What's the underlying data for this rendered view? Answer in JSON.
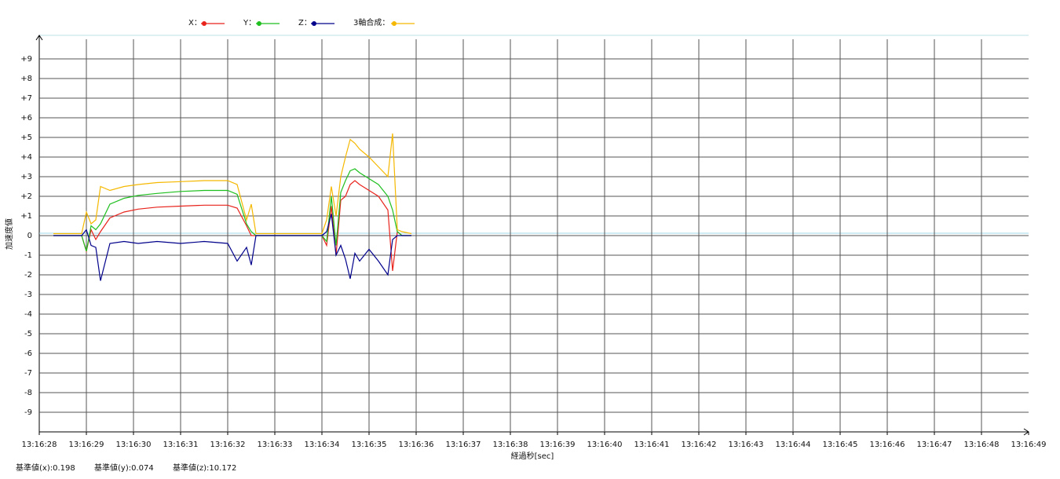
{
  "chart_data": {
    "type": "line",
    "y_label": "加速度値",
    "x_label": "経過秒[sec]",
    "footer": [
      "基準値(x):0.198",
      "基準値(y):0.074",
      "基準値(z):10.172"
    ],
    "grid": true,
    "xlim": [
      47788,
      47809
    ],
    "xticks": [
      {
        "value": 47788,
        "label": "13:16:28"
      },
      {
        "value": 47789,
        "label": "13:16:29"
      },
      {
        "value": 47790,
        "label": "13:16:30"
      },
      {
        "value": 47791,
        "label": "13:16:31"
      },
      {
        "value": 47792,
        "label": "13:16:32"
      },
      {
        "value": 47793,
        "label": "13:16:33"
      },
      {
        "value": 47794,
        "label": "13:16:34"
      },
      {
        "value": 47795,
        "label": "13:16:35"
      },
      {
        "value": 47796,
        "label": "13:16:36"
      },
      {
        "value": 47797,
        "label": "13:16:37"
      },
      {
        "value": 47798,
        "label": "13:16:38"
      },
      {
        "value": 47799,
        "label": "13:16:39"
      },
      {
        "value": 47800,
        "label": "13:16:40"
      },
      {
        "value": 47801,
        "label": "13:16:41"
      },
      {
        "value": 47802,
        "label": "13:16:42"
      },
      {
        "value": 47803,
        "label": "13:16:43"
      },
      {
        "value": 47804,
        "label": "13:16:44"
      },
      {
        "value": 47805,
        "label": "13:16:45"
      },
      {
        "value": 47806,
        "label": "13:16:46"
      },
      {
        "value": 47807,
        "label": "13:16:47"
      },
      {
        "value": 47808,
        "label": "13:16:48"
      },
      {
        "value": 47809,
        "label": "13:16:49"
      }
    ],
    "ylim": [
      -10,
      10
    ],
    "yticks": [
      {
        "value": 9,
        "label": "+9"
      },
      {
        "value": 8,
        "label": "+8"
      },
      {
        "value": 7,
        "label": "+7"
      },
      {
        "value": 6,
        "label": "+6"
      },
      {
        "value": 5,
        "label": "+5"
      },
      {
        "value": 4,
        "label": "+4"
      },
      {
        "value": 3,
        "label": "+3"
      },
      {
        "value": 2,
        "label": "+2"
      },
      {
        "value": 1,
        "label": "+1"
      },
      0,
      -1,
      -2,
      -3,
      -4,
      -5,
      -6,
      -7,
      -8,
      -9
    ],
    "x": [
      47788.3,
      47788.6,
      47788.9,
      47789.0,
      47789.1,
      47789.2,
      47789.3,
      47789.5,
      47789.8,
      47790.1,
      47790.5,
      47791.0,
      47791.5,
      47792.0,
      47792.2,
      47792.4,
      47792.5,
      47792.6,
      47792.8,
      47793.4,
      47794.0,
      47794.1,
      47794.2,
      47794.3,
      47794.4,
      47794.5,
      47794.6,
      47794.7,
      47794.8,
      47795.0,
      47795.2,
      47795.4,
      47795.5,
      47795.6,
      47795.7,
      47795.9
    ],
    "series": [
      {
        "name": "X：",
        "color": "#e8231c",
        "values": [
          0,
          0,
          0,
          -0.8,
          0.3,
          -0.2,
          0.2,
          0.9,
          1.2,
          1.35,
          1.45,
          1.5,
          1.55,
          1.55,
          1.4,
          0.5,
          0,
          0,
          0,
          0,
          0,
          -0.5,
          1.5,
          -1.0,
          1.8,
          2.0,
          2.6,
          2.8,
          2.6,
          2.3,
          2.0,
          1.3,
          -1.8,
          0.2,
          0,
          0
        ]
      },
      {
        "name": "Y：",
        "color": "#1fbf1f",
        "values": [
          0,
          0,
          0,
          -0.8,
          0.5,
          0.3,
          0.6,
          1.6,
          1.9,
          2.05,
          2.15,
          2.25,
          2.3,
          2.3,
          2.1,
          0.6,
          0.2,
          0,
          0,
          0,
          0,
          -0.3,
          2.0,
          -0.5,
          2.2,
          2.8,
          3.3,
          3.4,
          3.2,
          2.9,
          2.6,
          2.0,
          1.3,
          0.2,
          0,
          0
        ]
      },
      {
        "name": "Z：",
        "color": "#00008b",
        "values": [
          0,
          0,
          0,
          0.3,
          -0.5,
          -0.6,
          -2.3,
          -0.4,
          -0.3,
          -0.4,
          -0.3,
          -0.4,
          -0.3,
          -0.4,
          -1.3,
          -0.6,
          -1.5,
          0,
          0,
          0,
          0,
          0.2,
          1.1,
          -1.0,
          -0.5,
          -1.2,
          -2.2,
          -0.9,
          -1.3,
          -0.7,
          -1.3,
          -2.0,
          -0.2,
          0,
          0,
          0
        ]
      },
      {
        "name": "3軸合成：",
        "color": "#f5b800",
        "values": [
          0.1,
          0.1,
          0.1,
          1.2,
          0.6,
          0.8,
          2.5,
          2.3,
          2.5,
          2.6,
          2.7,
          2.75,
          2.8,
          2.8,
          2.6,
          0.8,
          1.6,
          0.1,
          0.1,
          0.1,
          0.1,
          0.8,
          2.5,
          1.0,
          3.0,
          4.0,
          4.9,
          4.7,
          4.4,
          4.0,
          3.5,
          3.0,
          5.2,
          0.3,
          0.2,
          0.1
        ]
      }
    ]
  }
}
